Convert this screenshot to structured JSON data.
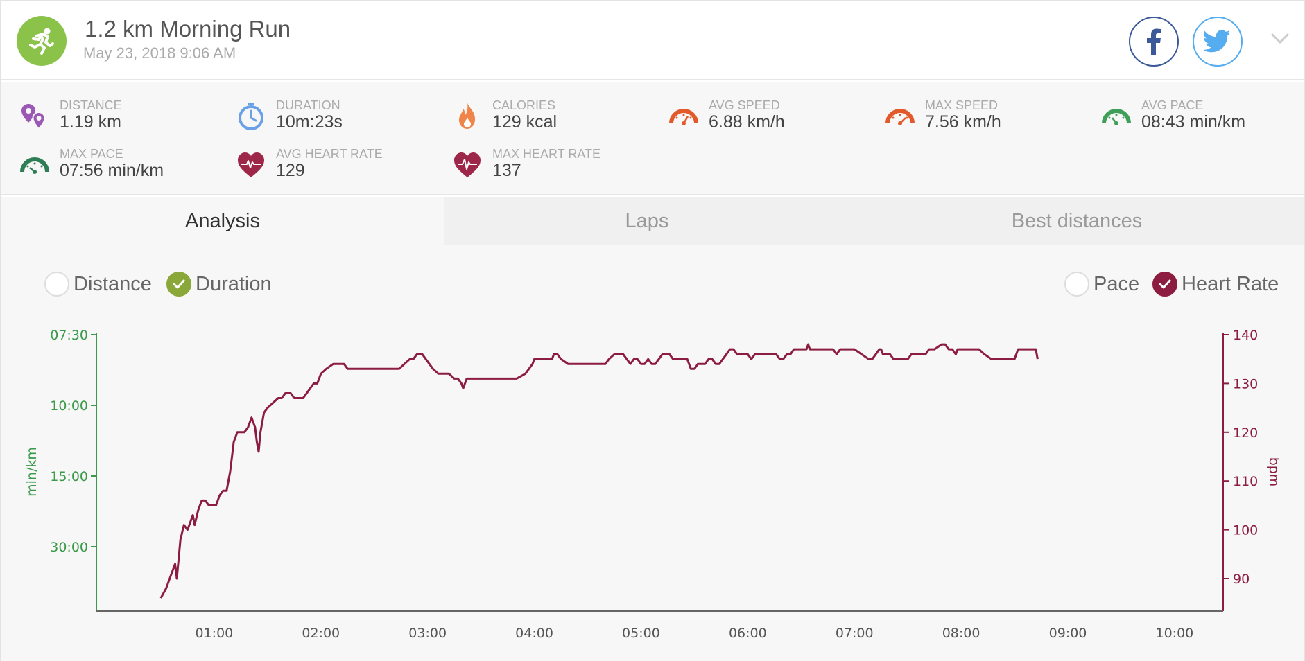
{
  "header": {
    "title": "1.2 km Morning Run",
    "subtitle": "May 23, 2018 9:06 AM",
    "activity_icon": "runner-icon",
    "share_facebook": "facebook-icon",
    "share_twitter": "twitter-icon",
    "menu_icon": "chevron-down-icon"
  },
  "stats": [
    {
      "label": "DISTANCE",
      "value": "1.19 km",
      "icon": "distance-pin-icon",
      "color": "#9b59b6"
    },
    {
      "label": "DURATION",
      "value": "10m:23s",
      "icon": "stopwatch-icon",
      "color": "#6aa0e6"
    },
    {
      "label": "CALORIES",
      "value": "129 kcal",
      "icon": "flame-icon",
      "color": "#f0854a"
    },
    {
      "label": "AVG SPEED",
      "value": "6.88 km/h",
      "icon": "speedometer-icon",
      "color": "#e2592a"
    },
    {
      "label": "MAX SPEED",
      "value": "7.56 km/h",
      "icon": "speedometer-icon",
      "color": "#e2592a"
    },
    {
      "label": "AVG PACE",
      "value": "08:43 min/km",
      "icon": "pace-gauge-icon",
      "color": "#3f9e58"
    },
    {
      "label": "MAX PACE",
      "value": "07:56 min/km",
      "icon": "pace-gauge-icon",
      "color": "#2e7d55"
    },
    {
      "label": "AVG HEART RATE",
      "value": "129",
      "icon": "heart-rate-icon",
      "color": "#9c2748"
    },
    {
      "label": "MAX HEART RATE",
      "value": "137",
      "icon": "heart-rate-icon",
      "color": "#9c2748"
    }
  ],
  "tabs": [
    {
      "label": "Analysis",
      "active": true
    },
    {
      "label": "Laps",
      "active": false
    },
    {
      "label": "Best distances",
      "active": false
    }
  ],
  "toggles": {
    "distance": {
      "label": "Distance",
      "checked": false
    },
    "duration": {
      "label": "Duration",
      "checked": true
    },
    "pace": {
      "label": "Pace",
      "checked": false
    },
    "heart_rate": {
      "label": "Heart Rate",
      "checked": true
    }
  },
  "colors": {
    "pace_axis": "#3a9a4a",
    "heart_rate": "#8c1d40",
    "duration_toggle": "#8aa83a"
  },
  "chart_data": {
    "type": "line",
    "xlabel": "",
    "x_ticks": [
      "01:00",
      "02:00",
      "03:00",
      "04:00",
      "05:00",
      "06:00",
      "07:00",
      "08:00",
      "09:00",
      "10:00"
    ],
    "x_range_seconds": [
      0,
      627
    ],
    "left_axis": {
      "label": "min/km",
      "ticks": [
        "07:30",
        "10:00",
        "15:00",
        "30:00"
      ]
    },
    "right_axis": {
      "label": "bpm",
      "ticks": [
        140,
        130,
        120,
        110,
        100,
        90
      ],
      "range": [
        83,
        140
      ]
    },
    "series": [
      {
        "name": "Heart Rate",
        "axis": "right",
        "points": [
          [
            30,
            86
          ],
          [
            33,
            88
          ],
          [
            36,
            91
          ],
          [
            38,
            93
          ],
          [
            39,
            90
          ],
          [
            41,
            98
          ],
          [
            43,
            101
          ],
          [
            45,
            100
          ],
          [
            46,
            101
          ],
          [
            48,
            103
          ],
          [
            49,
            101
          ],
          [
            51,
            104
          ],
          [
            53,
            106
          ],
          [
            55,
            106
          ],
          [
            57,
            105
          ],
          [
            61,
            105
          ],
          [
            63,
            107
          ],
          [
            65,
            108
          ],
          [
            67,
            108
          ],
          [
            69,
            112
          ],
          [
            71,
            118
          ],
          [
            73,
            120
          ],
          [
            77,
            120
          ],
          [
            79,
            121
          ],
          [
            81,
            123
          ],
          [
            83,
            121
          ],
          [
            84,
            118
          ],
          [
            85,
            116
          ],
          [
            86,
            120
          ],
          [
            88,
            124
          ],
          [
            90,
            125
          ],
          [
            93,
            126
          ],
          [
            96,
            127
          ],
          [
            98,
            127
          ],
          [
            100,
            128
          ],
          [
            103,
            128
          ],
          [
            105,
            127
          ],
          [
            110,
            127
          ],
          [
            112,
            128
          ],
          [
            114,
            129
          ],
          [
            116,
            130
          ],
          [
            118,
            130
          ],
          [
            120,
            132
          ],
          [
            123,
            133
          ],
          [
            127,
            134
          ],
          [
            133,
            134
          ],
          [
            135,
            133
          ],
          [
            145,
            133
          ],
          [
            150,
            133
          ],
          [
            164,
            133
          ],
          [
            167,
            134
          ],
          [
            170,
            135
          ],
          [
            172,
            135
          ],
          [
            174,
            136
          ],
          [
            177,
            136
          ],
          [
            179,
            135
          ],
          [
            181,
            134
          ],
          [
            183,
            133
          ],
          [
            186,
            132
          ],
          [
            192,
            132
          ],
          [
            195,
            131
          ],
          [
            197,
            131
          ],
          [
            199,
            130
          ],
          [
            200,
            129
          ],
          [
            202,
            131
          ],
          [
            220,
            131
          ],
          [
            230,
            131
          ],
          [
            235,
            132
          ],
          [
            239,
            134
          ],
          [
            240,
            135
          ],
          [
            250,
            135
          ],
          [
            251,
            136
          ],
          [
            253,
            136
          ],
          [
            255,
            135
          ],
          [
            259,
            134
          ],
          [
            262,
            134
          ],
          [
            280,
            134
          ],
          [
            282,
            135
          ],
          [
            285,
            136
          ],
          [
            290,
            136
          ],
          [
            292,
            135
          ],
          [
            294,
            134
          ],
          [
            296,
            135
          ],
          [
            298,
            135
          ],
          [
            300,
            134
          ],
          [
            302,
            134
          ],
          [
            304,
            135
          ],
          [
            306,
            134
          ],
          [
            308,
            134
          ],
          [
            310,
            135
          ],
          [
            312,
            136
          ],
          [
            316,
            136
          ],
          [
            318,
            135
          ],
          [
            326,
            135
          ],
          [
            328,
            133
          ],
          [
            330,
            133
          ],
          [
            332,
            134
          ],
          [
            336,
            134
          ],
          [
            338,
            135
          ],
          [
            340,
            135
          ],
          [
            342,
            134
          ],
          [
            344,
            134
          ],
          [
            346,
            135
          ],
          [
            348,
            136
          ],
          [
            350,
            137
          ],
          [
            352,
            137
          ],
          [
            354,
            136
          ],
          [
            360,
            136
          ],
          [
            362,
            135
          ],
          [
            364,
            136
          ],
          [
            376,
            136
          ],
          [
            378,
            135
          ],
          [
            380,
            135
          ],
          [
            382,
            136
          ],
          [
            384,
            136
          ],
          [
            386,
            137
          ],
          [
            388,
            137
          ],
          [
            393,
            137
          ],
          [
            394,
            138
          ],
          [
            395,
            137
          ],
          [
            408,
            137
          ],
          [
            410,
            136
          ],
          [
            412,
            137
          ],
          [
            420,
            137
          ],
          [
            424,
            136
          ],
          [
            428,
            135
          ],
          [
            430,
            135
          ],
          [
            432,
            136
          ],
          [
            434,
            137
          ],
          [
            435,
            137
          ],
          [
            436,
            136
          ],
          [
            440,
            136
          ],
          [
            442,
            135
          ],
          [
            450,
            135
          ],
          [
            452,
            136
          ],
          [
            455,
            136
          ],
          [
            460,
            136
          ],
          [
            462,
            137
          ],
          [
            465,
            137
          ],
          [
            469,
            138
          ],
          [
            471,
            138
          ],
          [
            473,
            137
          ],
          [
            475,
            137
          ],
          [
            477,
            136
          ],
          [
            478,
            137
          ],
          [
            490,
            137
          ],
          [
            493,
            136
          ],
          [
            497,
            135
          ],
          [
            510,
            135
          ],
          [
            512,
            137
          ],
          [
            522,
            137
          ],
          [
            523,
            135
          ]
        ]
      }
    ]
  }
}
